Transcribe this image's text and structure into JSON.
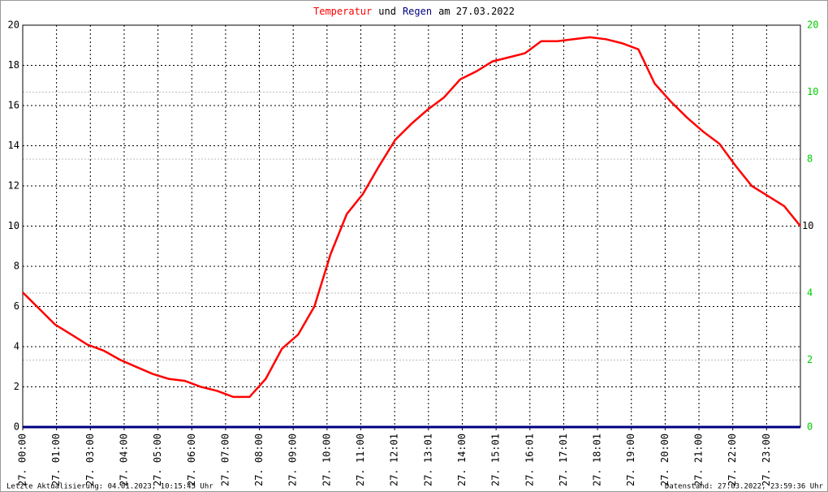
{
  "chart_data": {
    "type": "line",
    "title_parts": [
      {
        "text": "Temperatur",
        "color": "#ff0000"
      },
      {
        "text": "und",
        "color": "#000000"
      },
      {
        "text": "Regen",
        "color": "#000080"
      },
      {
        "text": "am 27.03.2022",
        "color": "#000000"
      }
    ],
    "x_labels": [
      "27. 00:00",
      "27. 01:00",
      "27. 03:00",
      "27. 04:00",
      "27. 05:00",
      "27. 06:00",
      "27. 07:00",
      "27. 08:00",
      "27. 09:00",
      "27. 10:00",
      "27. 11:00",
      "27. 12:01",
      "27. 13:01",
      "27. 14:00",
      "27. 15:01",
      "27. 16:01",
      "27. 17:01",
      "27. 18:01",
      "27. 19:00",
      "27. 20:00",
      "27. 21:00",
      "27. 22:00",
      "27. 23:00"
    ],
    "series": [
      {
        "name": "Temperatur",
        "color": "#ff0000",
        "values": [
          6.7,
          5.9,
          5.1,
          4.6,
          4.1,
          3.8,
          3.35,
          3.0,
          2.65,
          2.4,
          2.3,
          2.0,
          1.8,
          1.5,
          1.5,
          2.4,
          3.9,
          4.6,
          6.0,
          8.6,
          10.6,
          11.6,
          13.0,
          14.3,
          15.1,
          15.8,
          16.4,
          17.3,
          17.7,
          18.2,
          18.4,
          18.6,
          19.2,
          19.2,
          19.3,
          19.4,
          19.3,
          19.1,
          18.8,
          17.1,
          16.2,
          15.4,
          14.7,
          14.1,
          13.0,
          12.0,
          11.5,
          11.0,
          10.0
        ]
      },
      {
        "name": "Regen",
        "color": "#000080",
        "axis": "y2",
        "values": [
          0,
          0
        ]
      }
    ],
    "ylim": [
      0,
      20
    ],
    "yticks": [
      0,
      2,
      4,
      6,
      8,
      10,
      12,
      14,
      16,
      18,
      20
    ],
    "y2lim": [
      0,
      12
    ],
    "y2ticks": [
      0,
      2,
      4,
      8,
      10
    ],
    "y2_color": "#00cc00",
    "y2_extra_labels": [
      "20",
      "10"
    ],
    "grid": true,
    "footer_left": "Letzte Aktualisierung: 04.01.2023, 10:15:45 Uhr",
    "footer_right": "Datenstand: 27.03.2022, 23:59:36 Uhr"
  }
}
